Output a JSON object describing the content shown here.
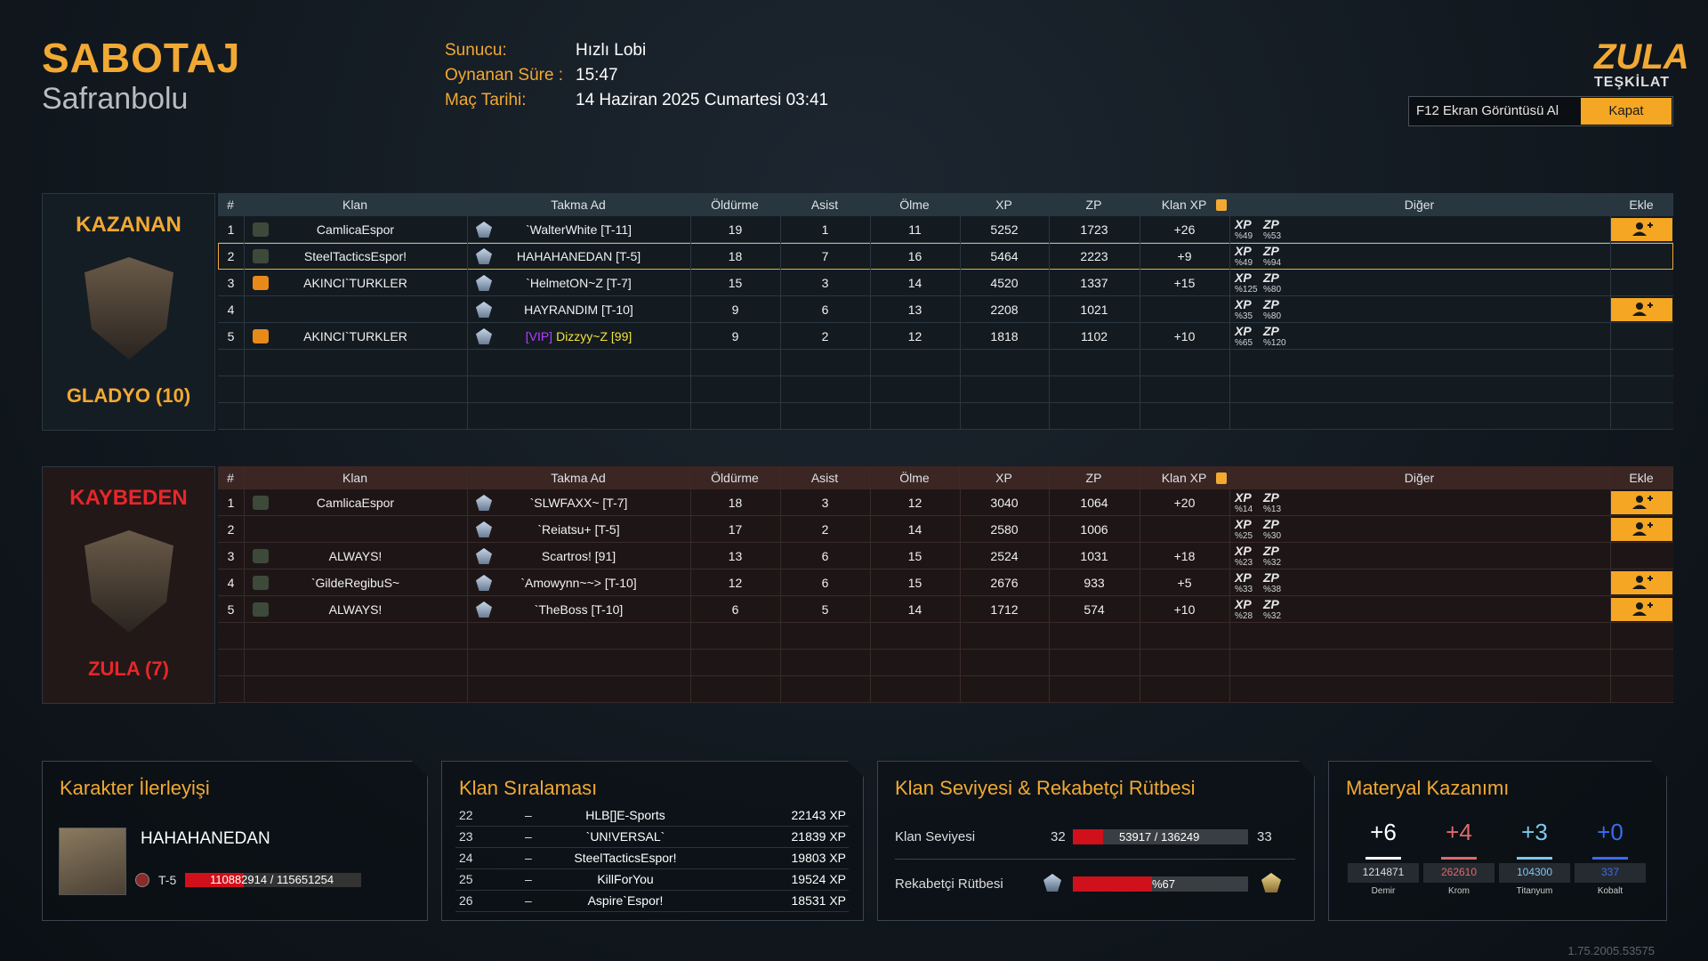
{
  "header": {
    "mode": "SABOTAJ",
    "map": "Safranbolu",
    "info": [
      {
        "label": "Sunucu:",
        "value": "Hızlı Lobi"
      },
      {
        "label": "Oynanan Süre :",
        "value": "15:47"
      },
      {
        "label": "Maç Tarihi:",
        "value": "14 Haziran 2025 Cumartesi 03:41"
      }
    ],
    "logo": {
      "title": "ZULA",
      "subtitle": "TEŞKİLAT"
    },
    "buttons": [
      "F12 Ekran Görüntüsü Al",
      "Kapat"
    ]
  },
  "columns": [
    "#",
    "Klan",
    "Takma Ad",
    "Öldürme",
    "Asist",
    "Ölme",
    "XP",
    "ZP",
    "Klan XP",
    "Diğer",
    "Ekle"
  ],
  "teams": [
    {
      "status": "KAZANAN",
      "name": "GLADYO (10)",
      "rows": [
        {
          "rank": 1,
          "clan": "CamlicaEspor",
          "nick": "`WalterWhite [T-11]",
          "kills": 19,
          "assists": 1,
          "deaths": 11,
          "xp": 5252,
          "zp": 1723,
          "clan_xp": "+26",
          "other": [
            {
              "label": "XP",
              "value": "%49"
            },
            {
              "label": "ZP",
              "value": "%53"
            }
          ],
          "add": true
        },
        {
          "rank": 2,
          "clan": "SteelTacticsEspor!",
          "nick": "HAHAHANEDAN [T-5]",
          "kills": 18,
          "assists": 7,
          "deaths": 16,
          "xp": 5464,
          "zp": 2223,
          "clan_xp": "+9",
          "other": [
            {
              "label": "XP",
              "value": "%49"
            },
            {
              "label": "ZP",
              "value": "%94"
            }
          ],
          "highlight": true
        },
        {
          "rank": 3,
          "clan": "AKINCI`TURKLER",
          "nick": "`HelmetON~Z [T-7]",
          "kills": 15,
          "assists": 3,
          "deaths": 14,
          "xp": 4520,
          "zp": 1337,
          "clan_xp": "+15",
          "other": [
            {
              "label": "XP",
              "value": "%125"
            },
            {
              "label": "ZP",
              "value": "%80"
            }
          ]
        },
        {
          "rank": 4,
          "clan": null,
          "nick": "HAYRANDIM [T-10]",
          "kills": 9,
          "assists": 6,
          "deaths": 13,
          "xp": 2208,
          "zp": 1021,
          "clan_xp": null,
          "other": [
            {
              "label": "XP",
              "value": "%35"
            },
            {
              "label": "ZP",
              "value": "%80"
            }
          ],
          "add": true
        },
        {
          "rank": 5,
          "clan": "AKINCI`TURKLER",
          "nick_prefix": "[VIP]",
          "nick": "Dizzyy~Z [99]",
          "kills": 9,
          "assists": 2,
          "deaths": 12,
          "xp": 1818,
          "zp": 1102,
          "clan_xp": "+10",
          "other": [
            {
              "label": "XP",
              "value": "%65"
            },
            {
              "label": "ZP",
              "value": "%120"
            }
          ]
        }
      ]
    },
    {
      "status": "KAYBEDEN",
      "name": "ZULA (7)",
      "rows": [
        {
          "rank": 1,
          "clan": "CamlicaEspor",
          "nick": "`SLWFAXX~ [T-7]",
          "kills": 18,
          "assists": 3,
          "deaths": 12,
          "xp": 3040,
          "zp": 1064,
          "clan_xp": "+20",
          "other": [
            {
              "label": "XP",
              "value": "%14"
            },
            {
              "label": "ZP",
              "value": "%13"
            }
          ],
          "add": true
        },
        {
          "rank": 2,
          "clan": null,
          "nick": "`Reiatsu+ [T-5]",
          "kills": 17,
          "assists": 2,
          "deaths": 14,
          "xp": 2580,
          "zp": 1006,
          "clan_xp": null,
          "other": [
            {
              "label": "XP",
              "value": "%25"
            },
            {
              "label": "ZP",
              "value": "%30"
            }
          ],
          "add": true
        },
        {
          "rank": 3,
          "clan": "ALWAYS!",
          "nick": "Scartros! [91]",
          "kills": 13,
          "assists": 6,
          "deaths": 15,
          "xp": 2524,
          "zp": 1031,
          "clan_xp": "+18",
          "other": [
            {
              "label": "XP",
              "value": "%23"
            },
            {
              "label": "ZP",
              "value": "%32"
            }
          ]
        },
        {
          "rank": 4,
          "clan": "`GildeRegibuS~",
          "nick": "`Amowynn~~> [T-10]",
          "kills": 12,
          "assists": 6,
          "deaths": 15,
          "xp": 2676,
          "zp": 933,
          "clan_xp": "+5",
          "other": [
            {
              "label": "XP",
              "value": "%33"
            },
            {
              "label": "ZP",
              "value": "%38"
            }
          ],
          "add": true
        },
        {
          "rank": 5,
          "clan": "ALWAYS!",
          "nick": "`TheBoss [T-10]",
          "kills": 6,
          "assists": 5,
          "deaths": 14,
          "xp": 1712,
          "zp": 574,
          "clan_xp": "+10",
          "other": [
            {
              "label": "XP",
              "value": "%28"
            },
            {
              "label": "ZP",
              "value": "%32"
            }
          ],
          "add": true
        }
      ]
    }
  ],
  "character": {
    "title": "Karakter İlerleyişi",
    "name": "HAHAHANEDAN",
    "rank": "T-5",
    "progress": "110882914 / 115651254"
  },
  "clan_ranking": {
    "title": "Klan Sıralaması",
    "rows": [
      {
        "rank": "22",
        "change": "–",
        "name": "HLB[]E-Sports",
        "xp": "22143 XP"
      },
      {
        "rank": "23",
        "change": "–",
        "name": "`UN!VERSAL`",
        "xp": "21839 XP"
      },
      {
        "rank": "24",
        "change": "–",
        "name": "SteelTacticsEspor!",
        "xp": "19803 XP"
      },
      {
        "rank": "25",
        "change": "–",
        "name": "KillForYou",
        "xp": "19524 XP"
      },
      {
        "rank": "26",
        "change": "–",
        "name": "Aspire`Espor!",
        "xp": "18531 XP"
      }
    ]
  },
  "clan_level": {
    "title": "Klan Seviyesi & Rekabetçi Rütbesi",
    "level_label": "Klan Seviyesi",
    "level": "32",
    "level_progress": "53917 / 136249",
    "next_level": "33",
    "rank_label": "Rekabetçi Rütbesi",
    "rank_progress": "%67"
  },
  "materials": {
    "title": "Materyal Kazanımı",
    "items": [
      {
        "gain": "+6",
        "total": "1214871",
        "name": "Demir",
        "color": "#ffffff"
      },
      {
        "gain": "+4",
        "total": "262610",
        "name": "Krom",
        "color": "#e06a6a"
      },
      {
        "gain": "+3",
        "total": "104300",
        "name": "Titanyum",
        "color": "#7cc8f0"
      },
      {
        "gain": "+0",
        "total": "337",
        "name": "Kobalt",
        "color": "#3a6cf0"
      }
    ]
  },
  "version": "1.75.2005.53575"
}
